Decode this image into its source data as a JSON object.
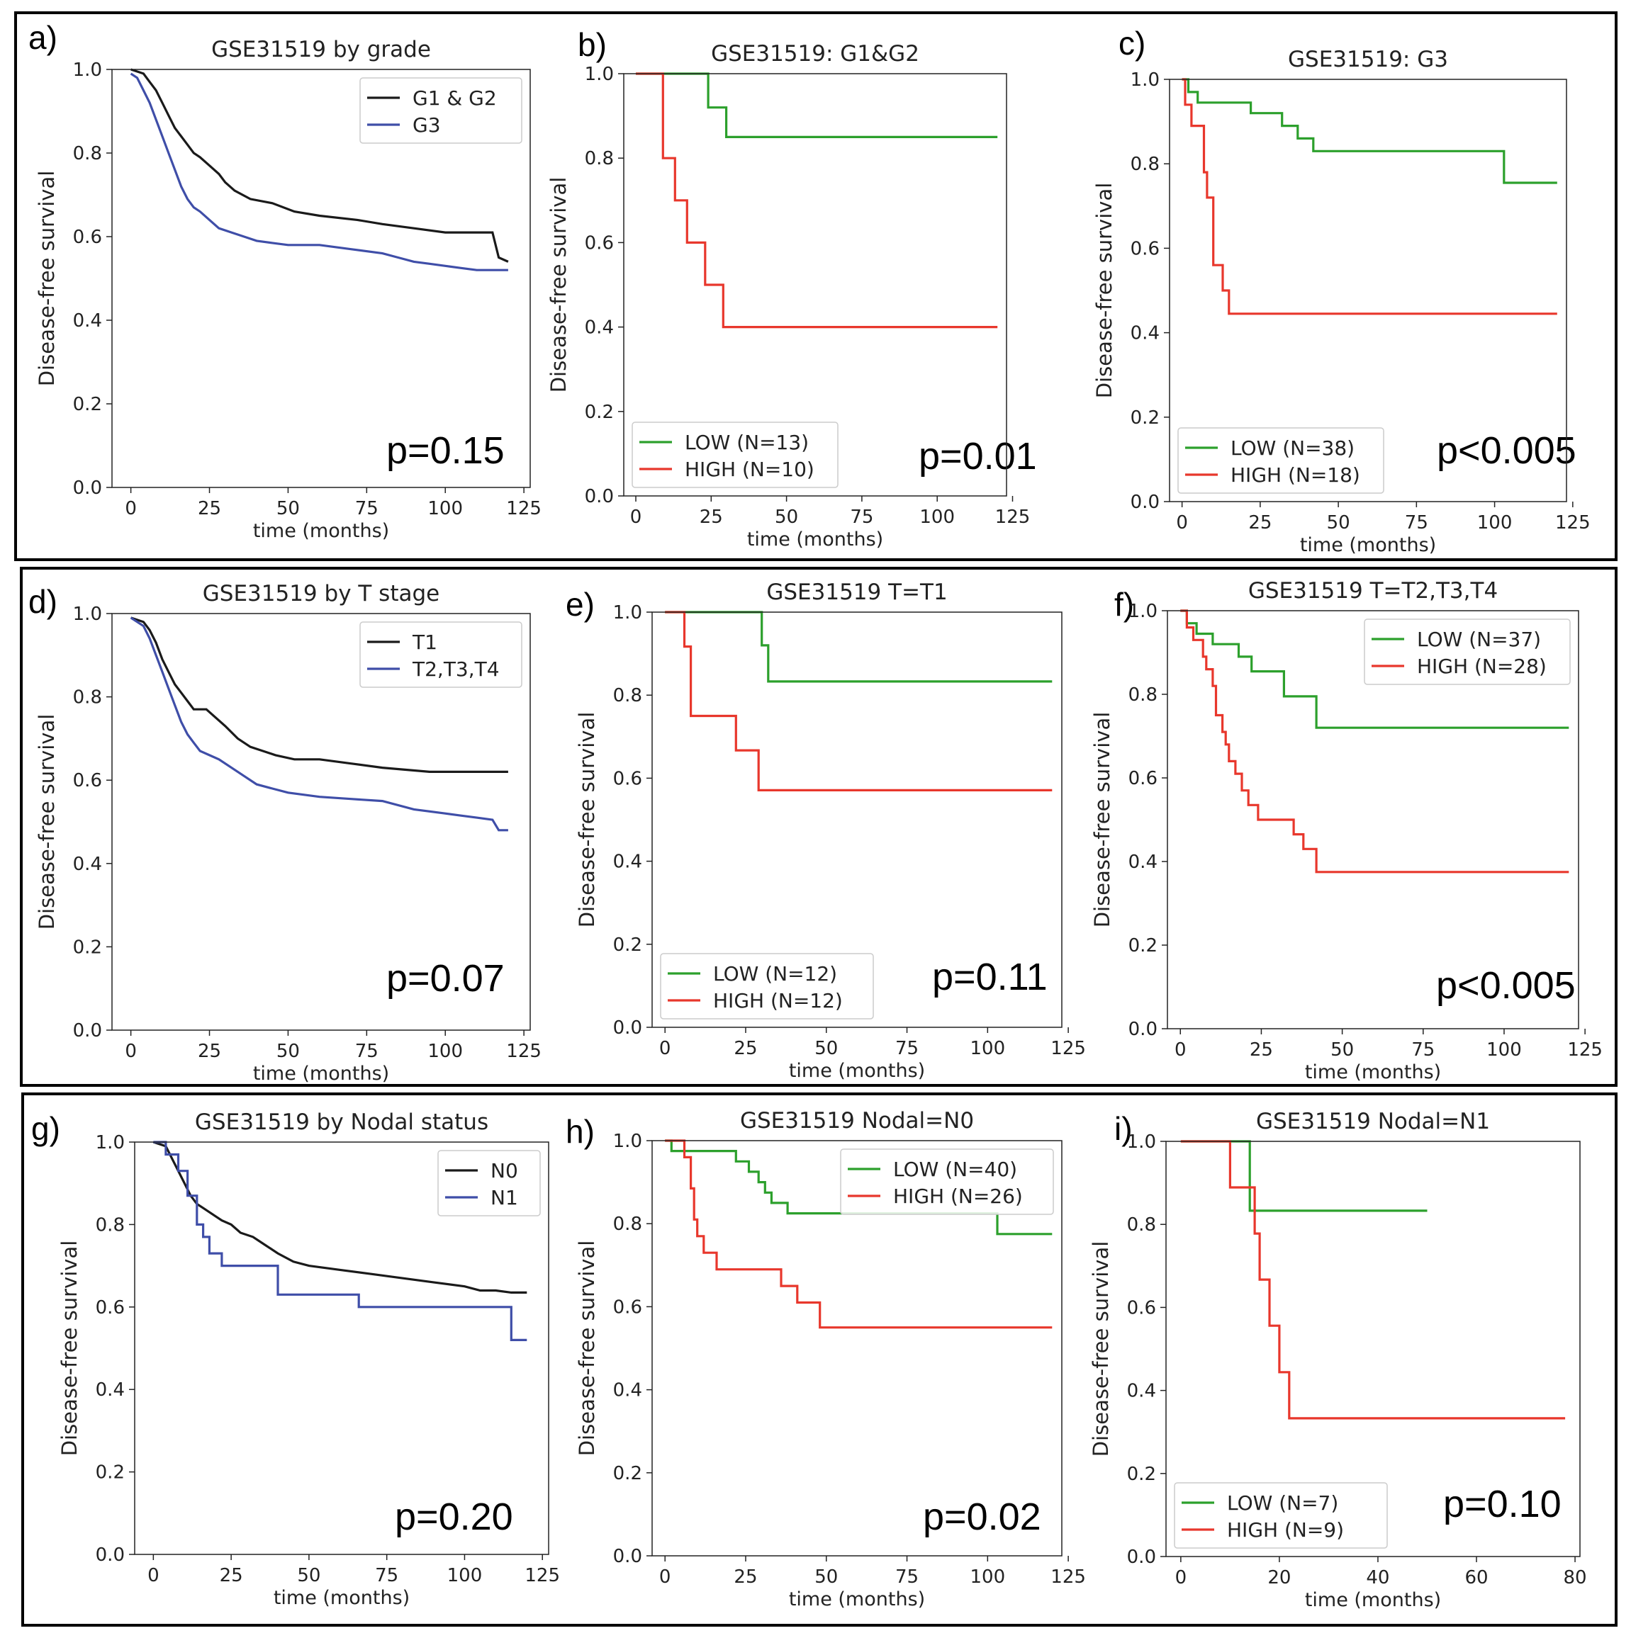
{
  "chart_data": [
    {
      "panel": "a)",
      "type": "line",
      "title": "GSE31519 by grade",
      "xlabel": "time (months)",
      "ylabel": "Disease-free survival",
      "xlim": [
        -6,
        127
      ],
      "ylim": [
        0,
        1.0
      ],
      "xticks": [
        "0",
        "25",
        "50",
        "75",
        "100",
        "125"
      ],
      "yticks": [
        "0.0",
        "0.2",
        "0.4",
        "0.6",
        "0.8",
        "1.0"
      ],
      "legend": "top-right",
      "annotation": "p=0.15",
      "series": [
        {
          "name": "G1 & G2",
          "color": "#1a1a1a",
          "x": [
            0,
            4,
            6,
            8,
            10,
            12,
            14,
            16,
            18,
            20,
            22,
            25,
            28,
            30,
            33,
            38,
            45,
            52,
            60,
            72,
            80,
            90,
            100,
            108,
            115,
            117,
            120
          ],
          "y": [
            1.0,
            0.99,
            0.97,
            0.95,
            0.92,
            0.89,
            0.86,
            0.84,
            0.82,
            0.8,
            0.79,
            0.77,
            0.75,
            0.73,
            0.71,
            0.69,
            0.68,
            0.66,
            0.65,
            0.64,
            0.63,
            0.62,
            0.61,
            0.61,
            0.61,
            0.55,
            0.54
          ]
        },
        {
          "name": "G3",
          "color": "#3f4ea8",
          "x": [
            0,
            2,
            4,
            6,
            8,
            10,
            12,
            14,
            16,
            18,
            20,
            22,
            25,
            28,
            32,
            36,
            40,
            45,
            50,
            60,
            70,
            80,
            85,
            90,
            95,
            100,
            105,
            110,
            120
          ],
          "y": [
            0.99,
            0.98,
            0.95,
            0.92,
            0.88,
            0.84,
            0.8,
            0.76,
            0.72,
            0.69,
            0.67,
            0.66,
            0.64,
            0.62,
            0.61,
            0.6,
            0.59,
            0.585,
            0.58,
            0.58,
            0.57,
            0.56,
            0.55,
            0.54,
            0.535,
            0.53,
            0.525,
            0.52,
            0.52
          ]
        }
      ]
    },
    {
      "panel": "b)",
      "type": "line",
      "title": "GSE31519: G1&G2",
      "xlabel": "time (months)",
      "ylabel": "Disease-free survival",
      "xlim": [
        -4,
        123
      ],
      "ylim": [
        0,
        1.0
      ],
      "xticks": [
        "0",
        "25",
        "50",
        "75",
        "100",
        "125"
      ],
      "yticks": [
        "0.0",
        "0.2",
        "0.4",
        "0.6",
        "0.8",
        "1.0"
      ],
      "legend": "bottom-left",
      "annotation": "p=0.01",
      "series": [
        {
          "name": "LOW (N=13)",
          "color": "#2ca02c",
          "x": [
            0,
            24,
            24,
            30,
            30,
            120
          ],
          "y": [
            1.0,
            1.0,
            0.92,
            0.92,
            0.85,
            0.85
          ]
        },
        {
          "name": "HIGH (N=10)",
          "color": "#e8372c",
          "x": [
            0,
            9,
            9,
            13,
            13,
            17,
            17,
            23,
            23,
            29,
            29,
            120
          ],
          "y": [
            1.0,
            1.0,
            0.8,
            0.8,
            0.7,
            0.7,
            0.6,
            0.6,
            0.5,
            0.5,
            0.4,
            0.4
          ]
        }
      ]
    },
    {
      "panel": "c)",
      "type": "line",
      "title": "GSE31519: G3",
      "xlabel": "time (months)",
      "ylabel": "Disease-free survival",
      "xlim": [
        -4,
        123
      ],
      "ylim": [
        0,
        1.0
      ],
      "xticks": [
        "0",
        "25",
        "50",
        "75",
        "100",
        "125"
      ],
      "yticks": [
        "0.0",
        "0.2",
        "0.4",
        "0.6",
        "0.8",
        "1.0"
      ],
      "legend": "bottom-left",
      "annotation": "p<0.005",
      "series": [
        {
          "name": "LOW (N=38)",
          "color": "#2ca02c",
          "x": [
            0,
            2,
            2,
            5,
            5,
            22,
            22,
            32,
            32,
            37,
            37,
            42,
            42,
            103,
            103,
            120
          ],
          "y": [
            1.0,
            1.0,
            0.97,
            0.97,
            0.945,
            0.945,
            0.92,
            0.92,
            0.89,
            0.89,
            0.86,
            0.86,
            0.83,
            0.83,
            0.755,
            0.755
          ]
        },
        {
          "name": "HIGH (N=18)",
          "color": "#e8372c",
          "x": [
            0,
            1,
            1,
            3,
            3,
            7,
            7,
            8,
            8,
            10,
            10,
            13,
            13,
            15,
            15,
            120
          ],
          "y": [
            1.0,
            1.0,
            0.94,
            0.94,
            0.89,
            0.89,
            0.78,
            0.78,
            0.72,
            0.72,
            0.56,
            0.56,
            0.5,
            0.5,
            0.445,
            0.445
          ]
        }
      ]
    },
    {
      "panel": "d)",
      "type": "line",
      "title": "GSE31519 by T stage",
      "xlabel": "time (months)",
      "ylabel": "Disease-free survival",
      "xlim": [
        -6,
        127
      ],
      "ylim": [
        0,
        1.0
      ],
      "xticks": [
        "0",
        "25",
        "50",
        "75",
        "100",
        "125"
      ],
      "yticks": [
        "0.0",
        "0.2",
        "0.4",
        "0.6",
        "0.8",
        "1.0"
      ],
      "legend": "top-right",
      "annotation": "p=0.07",
      "series": [
        {
          "name": "T1",
          "color": "#1a1a1a",
          "x": [
            0,
            4,
            6,
            8,
            10,
            12,
            14,
            16,
            18,
            20,
            24,
            30,
            34,
            38,
            42,
            46,
            52,
            60,
            70,
            80,
            95,
            100,
            110,
            120
          ],
          "y": [
            0.99,
            0.98,
            0.96,
            0.93,
            0.89,
            0.86,
            0.83,
            0.81,
            0.79,
            0.77,
            0.77,
            0.73,
            0.7,
            0.68,
            0.67,
            0.66,
            0.65,
            0.65,
            0.64,
            0.63,
            0.62,
            0.62,
            0.62,
            0.62
          ]
        },
        {
          "name": "T2,T3,T4",
          "color": "#3f4ea8",
          "x": [
            0,
            4,
            6,
            8,
            10,
            12,
            14,
            16,
            18,
            20,
            22,
            25,
            28,
            32,
            36,
            40,
            45,
            50,
            60,
            70,
            80,
            90,
            100,
            105,
            110,
            115,
            117,
            120
          ],
          "y": [
            0.99,
            0.97,
            0.94,
            0.9,
            0.86,
            0.82,
            0.78,
            0.74,
            0.71,
            0.69,
            0.67,
            0.66,
            0.65,
            0.63,
            0.61,
            0.59,
            0.58,
            0.57,
            0.56,
            0.555,
            0.55,
            0.53,
            0.52,
            0.515,
            0.51,
            0.505,
            0.48,
            0.48
          ]
        }
      ]
    },
    {
      "panel": "e)",
      "type": "line",
      "title": "GSE31519 T=T1",
      "xlabel": "time (months)",
      "ylabel": "Disease-free survival",
      "xlim": [
        -4,
        123
      ],
      "ylim": [
        0,
        1.0
      ],
      "xticks": [
        "0",
        "25",
        "50",
        "75",
        "100",
        "125"
      ],
      "yticks": [
        "0.0",
        "0.2",
        "0.4",
        "0.6",
        "0.8",
        "1.0"
      ],
      "legend": "bottom-left",
      "annotation": "p=0.11",
      "series": [
        {
          "name": "LOW (N=12)",
          "color": "#2ca02c",
          "x": [
            0,
            30,
            30,
            32,
            32,
            120
          ],
          "y": [
            1.0,
            1.0,
            0.92,
            0.92,
            0.833,
            0.833
          ]
        },
        {
          "name": "HIGH (N=12)",
          "color": "#e8372c",
          "x": [
            0,
            6,
            6,
            8,
            8,
            22,
            22,
            29,
            29,
            120
          ],
          "y": [
            1.0,
            1.0,
            0.917,
            0.917,
            0.75,
            0.75,
            0.667,
            0.667,
            0.571,
            0.571
          ]
        }
      ]
    },
    {
      "panel": "f)",
      "type": "line",
      "title": "GSE31519 T=T2,T3,T4",
      "xlabel": "time (months)",
      "ylabel": "Disease-free survival",
      "xlim": [
        -4,
        123
      ],
      "ylim": [
        0,
        1.0
      ],
      "xticks": [
        "0",
        "25",
        "50",
        "75",
        "100",
        "125"
      ],
      "yticks": [
        "0.0",
        "0.2",
        "0.4",
        "0.6",
        "0.8",
        "1.0"
      ],
      "legend": "top-right",
      "annotation": "p<0.005",
      "series": [
        {
          "name": "LOW (N=37)",
          "color": "#2ca02c",
          "x": [
            0,
            2,
            2,
            5,
            5,
            10,
            10,
            18,
            18,
            22,
            22,
            32,
            32,
            42,
            42,
            103,
            103,
            120
          ],
          "y": [
            1.0,
            1.0,
            0.97,
            0.97,
            0.945,
            0.945,
            0.92,
            0.92,
            0.89,
            0.89,
            0.855,
            0.855,
            0.795,
            0.795,
            0.72,
            0.72,
            0.72,
            0.72
          ]
        },
        {
          "name": "HIGH (N=28)",
          "color": "#e8372c",
          "x": [
            0,
            2,
            2,
            4,
            4,
            7,
            7,
            8,
            8,
            10,
            10,
            11,
            11,
            13,
            13,
            14,
            14,
            15,
            15,
            17,
            17,
            19,
            19,
            21,
            21,
            24,
            24,
            30,
            30,
            35,
            35,
            38,
            38,
            42,
            42,
            48,
            48,
            120
          ],
          "y": [
            1.0,
            1.0,
            0.96,
            0.96,
            0.93,
            0.93,
            0.89,
            0.89,
            0.86,
            0.86,
            0.82,
            0.82,
            0.75,
            0.75,
            0.71,
            0.71,
            0.68,
            0.68,
            0.64,
            0.64,
            0.61,
            0.61,
            0.57,
            0.57,
            0.535,
            0.535,
            0.5,
            0.5,
            0.5,
            0.5,
            0.465,
            0.465,
            0.43,
            0.43,
            0.375,
            0.375,
            0.375,
            0.375
          ]
        }
      ]
    },
    {
      "panel": "g)",
      "type": "line",
      "title": "GSE31519 by Nodal status",
      "xlabel": "time (months)",
      "ylabel": "Disease-free survival",
      "xlim": [
        -6,
        127
      ],
      "ylim": [
        0,
        1.0
      ],
      "xticks": [
        "0",
        "25",
        "50",
        "75",
        "100",
        "125"
      ],
      "yticks": [
        "0.0",
        "0.2",
        "0.4",
        "0.6",
        "0.8",
        "1.0"
      ],
      "legend": "top-right",
      "annotation": "p=0.20",
      "series": [
        {
          "name": "N0",
          "color": "#1a1a1a",
          "x": [
            0,
            4,
            6,
            8,
            10,
            12,
            14,
            16,
            18,
            20,
            22,
            25,
            28,
            32,
            36,
            40,
            45,
            50,
            60,
            70,
            80,
            90,
            100,
            105,
            110,
            115,
            120
          ],
          "y": [
            1.0,
            0.99,
            0.96,
            0.93,
            0.9,
            0.87,
            0.85,
            0.84,
            0.83,
            0.82,
            0.81,
            0.8,
            0.78,
            0.77,
            0.75,
            0.73,
            0.71,
            0.7,
            0.69,
            0.68,
            0.67,
            0.66,
            0.65,
            0.64,
            0.64,
            0.635,
            0.635
          ]
        },
        {
          "name": "N1",
          "color": "#3f4ea8",
          "x": [
            0,
            4,
            4,
            8,
            8,
            11,
            11,
            14,
            14,
            16,
            16,
            18,
            18,
            22,
            22,
            40,
            40,
            66,
            66,
            115,
            115,
            120
          ],
          "y": [
            1.0,
            1.0,
            0.97,
            0.97,
            0.93,
            0.93,
            0.87,
            0.87,
            0.8,
            0.8,
            0.77,
            0.77,
            0.73,
            0.73,
            0.7,
            0.7,
            0.63,
            0.63,
            0.6,
            0.6,
            0.52,
            0.52
          ]
        }
      ]
    },
    {
      "panel": "h)",
      "type": "line",
      "title": "GSE31519 Nodal=N0",
      "xlabel": "time (months)",
      "ylabel": "Disease-free survival",
      "xlim": [
        -4,
        123
      ],
      "ylim": [
        0,
        1.0
      ],
      "xticks": [
        "0",
        "25",
        "50",
        "75",
        "100",
        "125"
      ],
      "yticks": [
        "0.0",
        "0.2",
        "0.4",
        "0.6",
        "0.8",
        "1.0"
      ],
      "legend": "top-right",
      "annotation": "p=0.02",
      "series": [
        {
          "name": "LOW (N=40)",
          "color": "#2ca02c",
          "x": [
            0,
            2,
            2,
            22,
            22,
            26,
            26,
            29,
            29,
            31,
            31,
            33,
            33,
            38,
            38,
            42,
            42,
            103,
            103,
            120
          ],
          "y": [
            1.0,
            1.0,
            0.975,
            0.975,
            0.95,
            0.95,
            0.925,
            0.925,
            0.9,
            0.9,
            0.875,
            0.875,
            0.85,
            0.85,
            0.825,
            0.825,
            0.825,
            0.825,
            0.775,
            0.775
          ]
        },
        {
          "name": "HIGH (N=26)",
          "color": "#e8372c",
          "x": [
            0,
            6,
            6,
            8,
            8,
            9,
            9,
            10,
            10,
            12,
            12,
            16,
            16,
            36,
            36,
            41,
            41,
            48,
            48,
            120
          ],
          "y": [
            1.0,
            1.0,
            0.96,
            0.96,
            0.885,
            0.885,
            0.81,
            0.81,
            0.77,
            0.77,
            0.73,
            0.73,
            0.69,
            0.69,
            0.65,
            0.65,
            0.61,
            0.61,
            0.55,
            0.55
          ]
        }
      ]
    },
    {
      "panel": "i)",
      "type": "line",
      "title": "GSE31519 Nodal=N1",
      "xlabel": "time (months)",
      "ylabel": "Disease-free survival",
      "xlim": [
        -3,
        81
      ],
      "ylim": [
        0,
        1.0
      ],
      "xticks": [
        "0",
        "20",
        "40",
        "60",
        "80"
      ],
      "yticks": [
        "0.0",
        "0.2",
        "0.4",
        "0.6",
        "0.8",
        "1.0"
      ],
      "legend": "bottom-left",
      "annotation": "p=0.10",
      "series": [
        {
          "name": "LOW (N=7)",
          "color": "#2ca02c",
          "x": [
            0,
            14,
            14,
            50
          ],
          "y": [
            1.0,
            1.0,
            0.833,
            0.833
          ]
        },
        {
          "name": "HIGH (N=9)",
          "color": "#e8372c",
          "x": [
            0,
            10,
            10,
            15,
            15,
            16,
            16,
            18,
            18,
            20,
            20,
            22,
            22,
            23,
            23,
            78
          ],
          "y": [
            1.0,
            1.0,
            0.889,
            0.889,
            0.778,
            0.778,
            0.667,
            0.667,
            0.556,
            0.556,
            0.444,
            0.444,
            0.333,
            0.333,
            0.333,
            0.333
          ]
        }
      ]
    }
  ]
}
